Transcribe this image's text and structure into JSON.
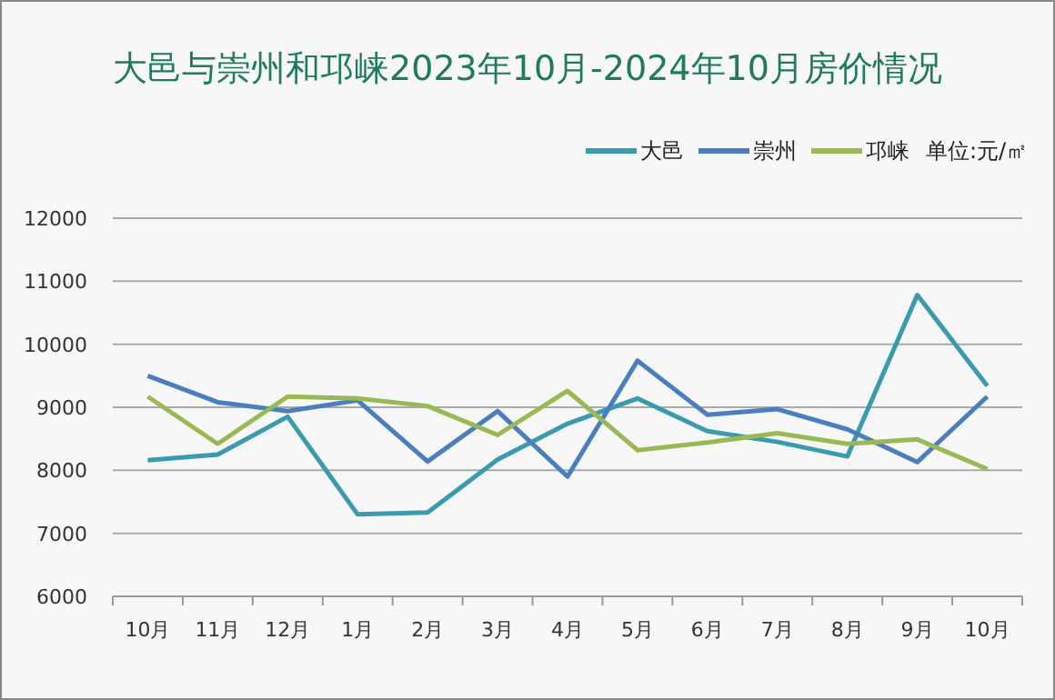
{
  "chart_data": {
    "type": "line",
    "title": "大邑与崇州和邛崃2023年10月-2024年10月房价情况",
    "categories": [
      "10月",
      "11月",
      "12月",
      "1月",
      "2月",
      "3月",
      "4月",
      "5月",
      "6月",
      "7月",
      "8月",
      "9月",
      "10月"
    ],
    "series": [
      {
        "name": "大邑",
        "color": "#3a9aae",
        "values": [
          8160,
          8250,
          8850,
          7300,
          7330,
          8170,
          8740,
          9140,
          8620,
          8450,
          8220,
          10780,
          9340
        ]
      },
      {
        "name": "崇州",
        "color": "#4a7ebf",
        "values": [
          9500,
          9080,
          8940,
          9110,
          8140,
          8940,
          7900,
          9740,
          8880,
          8970,
          8650,
          8130,
          9170
        ]
      },
      {
        "name": "邛崃",
        "color": "#98b954",
        "values": [
          9170,
          8420,
          9170,
          9140,
          9020,
          8560,
          9260,
          8320,
          8440,
          8590,
          8420,
          8490,
          8020
        ]
      }
    ],
    "ylim": [
      6000,
      12000
    ],
    "yticks": [
      6000,
      7000,
      8000,
      9000,
      10000,
      11000,
      12000
    ],
    "grid": "y",
    "legend": "top right",
    "marker": "none",
    "line_style": "solid",
    "annotations": [
      "单位:元/㎡"
    ]
  }
}
